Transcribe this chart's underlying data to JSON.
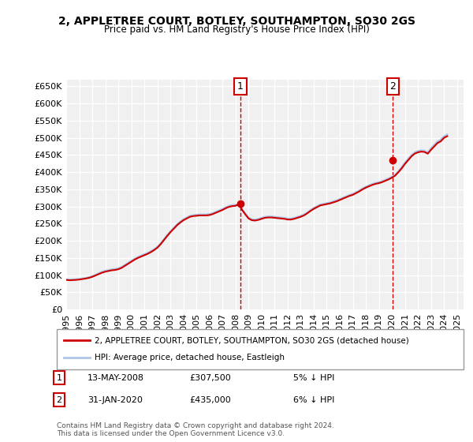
{
  "title": "2, APPLETREE COURT, BOTLEY, SOUTHAMPTON, SO30 2GS",
  "subtitle": "Price paid vs. HM Land Registry's House Price Index (HPI)",
  "xlabel": "",
  "ylabel": "",
  "ylim": [
    0,
    670000
  ],
  "yticks": [
    0,
    50000,
    100000,
    150000,
    200000,
    250000,
    300000,
    350000,
    400000,
    450000,
    500000,
    550000,
    600000,
    650000
  ],
  "ytick_labels": [
    "£0",
    "£50K",
    "£100K",
    "£150K",
    "£200K",
    "£250K",
    "£300K",
    "£350K",
    "£400K",
    "£450K",
    "£500K",
    "£550K",
    "£600K",
    "£650K"
  ],
  "background_color": "#ffffff",
  "plot_background": "#f0f0f0",
  "grid_color": "#ffffff",
  "hpi_color": "#aec6e8",
  "price_color": "#cc0000",
  "sale1_x": 2008.37,
  "sale1_y": 307500,
  "sale1_label": "1",
  "sale2_x": 2020.08,
  "sale2_y": 435000,
  "sale2_label": "2",
  "vline_color": "#cc0000",
  "marker_color": "#cc0000",
  "legend_line1": "2, APPLETREE COURT, BOTLEY, SOUTHAMPTON, SO30 2GS (detached house)",
  "legend_line2": "HPI: Average price, detached house, Eastleigh",
  "note1_label": "1",
  "note1_date": "13-MAY-2008",
  "note1_price": "£307,500",
  "note1_hpi": "5% ↓ HPI",
  "note2_label": "2",
  "note2_date": "31-JAN-2020",
  "note2_price": "£435,000",
  "note2_hpi": "6% ↓ HPI",
  "copyright": "Contains HM Land Registry data © Crown copyright and database right 2024.\nThis data is licensed under the Open Government Licence v3.0.",
  "hpi_data_x": [
    1995,
    1995.25,
    1995.5,
    1995.75,
    1996,
    1996.25,
    1996.5,
    1996.75,
    1997,
    1997.25,
    1997.5,
    1997.75,
    1998,
    1998.25,
    1998.5,
    1998.75,
    1999,
    1999.25,
    1999.5,
    1999.75,
    2000,
    2000.25,
    2000.5,
    2000.75,
    2001,
    2001.25,
    2001.5,
    2001.75,
    2002,
    2002.25,
    2002.5,
    2002.75,
    2003,
    2003.25,
    2003.5,
    2003.75,
    2004,
    2004.25,
    2004.5,
    2004.75,
    2005,
    2005.25,
    2005.5,
    2005.75,
    2006,
    2006.25,
    2006.5,
    2006.75,
    2007,
    2007.25,
    2007.5,
    2007.75,
    2008,
    2008.25,
    2008.5,
    2008.75,
    2009,
    2009.25,
    2009.5,
    2009.75,
    2010,
    2010.25,
    2010.5,
    2010.75,
    2011,
    2011.25,
    2011.5,
    2011.75,
    2012,
    2012.25,
    2012.5,
    2012.75,
    2013,
    2013.25,
    2013.5,
    2013.75,
    2014,
    2014.25,
    2014.5,
    2014.75,
    2015,
    2015.25,
    2015.5,
    2015.75,
    2016,
    2016.25,
    2016.5,
    2016.75,
    2017,
    2017.25,
    2017.5,
    2017.75,
    2018,
    2018.25,
    2018.5,
    2018.75,
    2019,
    2019.25,
    2019.5,
    2019.75,
    2020,
    2020.25,
    2020.5,
    2020.75,
    2021,
    2021.25,
    2021.5,
    2021.75,
    2022,
    2022.25,
    2022.5,
    2022.75,
    2023,
    2023.25,
    2023.5,
    2023.75,
    2024,
    2024.25
  ],
  "hpi_data_y": [
    88000,
    87000,
    87500,
    88000,
    89000,
    90500,
    92000,
    94000,
    97000,
    101000,
    106000,
    110000,
    113000,
    115000,
    117000,
    118000,
    120000,
    124000,
    130000,
    136000,
    142000,
    148000,
    153000,
    157000,
    161000,
    165000,
    170000,
    176000,
    183000,
    193000,
    205000,
    217000,
    228000,
    238000,
    248000,
    256000,
    263000,
    268000,
    273000,
    275000,
    276000,
    277000,
    277000,
    277000,
    278000,
    281000,
    285000,
    289000,
    293000,
    298000,
    302000,
    304000,
    305000,
    302000,
    293000,
    280000,
    268000,
    263000,
    262000,
    264000,
    267000,
    270000,
    271000,
    271000,
    270000,
    269000,
    268000,
    267000,
    265000,
    265000,
    267000,
    270000,
    273000,
    277000,
    283000,
    290000,
    296000,
    301000,
    306000,
    308000,
    310000,
    312000,
    315000,
    318000,
    322000,
    326000,
    330000,
    334000,
    337000,
    342000,
    347000,
    353000,
    358000,
    362000,
    366000,
    369000,
    371000,
    374000,
    378000,
    382000,
    387000,
    393000,
    403000,
    415000,
    428000,
    440000,
    450000,
    458000,
    462000,
    464000,
    463000,
    458000,
    470000,
    480000,
    490000,
    495000,
    505000,
    510000
  ],
  "price_data_x": [
    1995,
    1995.25,
    1995.5,
    1995.75,
    1996,
    1996.25,
    1996.5,
    1996.75,
    1997,
    1997.25,
    1997.5,
    1997.75,
    1998,
    1998.25,
    1998.5,
    1998.75,
    1999,
    1999.25,
    1999.5,
    1999.75,
    2000,
    2000.25,
    2000.5,
    2000.75,
    2001,
    2001.25,
    2001.5,
    2001.75,
    2002,
    2002.25,
    2002.5,
    2002.75,
    2003,
    2003.25,
    2003.5,
    2003.75,
    2004,
    2004.25,
    2004.5,
    2004.75,
    2005,
    2005.25,
    2005.5,
    2005.75,
    2006,
    2006.25,
    2006.5,
    2006.75,
    2007,
    2007.25,
    2007.5,
    2007.75,
    2008,
    2008.25,
    2008.5,
    2008.75,
    2009,
    2009.25,
    2009.5,
    2009.75,
    2010,
    2010.25,
    2010.5,
    2010.75,
    2011,
    2011.25,
    2011.5,
    2011.75,
    2012,
    2012.25,
    2012.5,
    2012.75,
    2013,
    2013.25,
    2013.5,
    2013.75,
    2014,
    2014.25,
    2014.5,
    2014.75,
    2015,
    2015.25,
    2015.5,
    2015.75,
    2016,
    2016.25,
    2016.5,
    2016.75,
    2017,
    2017.25,
    2017.5,
    2017.75,
    2018,
    2018.25,
    2018.5,
    2018.75,
    2019,
    2019.25,
    2019.5,
    2019.75,
    2020,
    2020.25,
    2020.5,
    2020.75,
    2021,
    2021.25,
    2021.5,
    2021.75,
    2022,
    2022.25,
    2022.5,
    2022.75,
    2023,
    2023.25,
    2023.5,
    2023.75,
    2024,
    2024.25
  ],
  "price_data_y": [
    86000,
    85000,
    85500,
    86000,
    87000,
    88500,
    90000,
    92000,
    95000,
    99000,
    103000,
    107000,
    110000,
    112000,
    114000,
    115000,
    117000,
    121000,
    127000,
    133000,
    139000,
    145000,
    150000,
    154000,
    158000,
    162000,
    167000,
    173000,
    180000,
    190000,
    202000,
    214000,
    225000,
    235000,
    245000,
    253000,
    260000,
    265000,
    270000,
    272000,
    273000,
    274000,
    274000,
    274000,
    275000,
    278000,
    282000,
    286000,
    290000,
    295000,
    299000,
    301000,
    302000,
    307500,
    290000,
    277000,
    265000,
    260000,
    259000,
    261000,
    264000,
    267000,
    268000,
    268000,
    267000,
    266000,
    265000,
    264000,
    262000,
    262000,
    264000,
    267000,
    270000,
    274000,
    280000,
    287000,
    293000,
    298000,
    303000,
    305000,
    307000,
    309000,
    312000,
    315000,
    319000,
    323000,
    327000,
    331000,
    334000,
    339000,
    344000,
    350000,
    355000,
    359000,
    363000,
    366000,
    368000,
    371000,
    375000,
    379000,
    384000,
    390000,
    400000,
    411000,
    424000,
    435000,
    446000,
    454000,
    458000,
    460000,
    459000,
    454000,
    465000,
    475000,
    485000,
    490000,
    500000,
    505000
  ],
  "xlim": [
    1995,
    2025.5
  ],
  "xticks": [
    1995,
    1996,
    1997,
    1998,
    1999,
    2000,
    2001,
    2002,
    2003,
    2004,
    2005,
    2006,
    2007,
    2008,
    2009,
    2010,
    2011,
    2012,
    2013,
    2014,
    2015,
    2016,
    2017,
    2018,
    2019,
    2020,
    2021,
    2022,
    2023,
    2024,
    2025
  ]
}
